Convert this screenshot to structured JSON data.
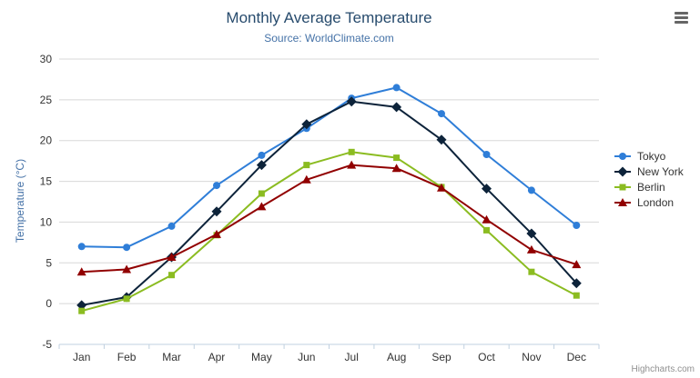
{
  "chart_data": {
    "type": "line",
    "title": "Monthly Average Temperature",
    "subtitle": "Source: WorldClimate.com",
    "xlabel": "",
    "ylabel": "Temperature (°C)",
    "ylim": [
      -5,
      30
    ],
    "yticks": [
      -5,
      0,
      5,
      10,
      15,
      20,
      25,
      30
    ],
    "grid": true,
    "legend_position": "right",
    "categories": [
      "Jan",
      "Feb",
      "Mar",
      "Apr",
      "May",
      "Jun",
      "Jul",
      "Aug",
      "Sep",
      "Oct",
      "Nov",
      "Dec"
    ],
    "series": [
      {
        "name": "Tokyo",
        "color": "#2f7ed8",
        "marker": "circle",
        "values": [
          7.0,
          6.9,
          9.5,
          14.5,
          18.2,
          21.5,
          25.2,
          26.5,
          23.3,
          18.3,
          13.9,
          9.6
        ]
      },
      {
        "name": "New York",
        "color": "#0d233a",
        "marker": "diamond",
        "values": [
          -0.2,
          0.8,
          5.7,
          11.3,
          17.0,
          22.0,
          24.8,
          24.1,
          20.1,
          14.1,
          8.6,
          2.5
        ]
      },
      {
        "name": "Berlin",
        "color": "#8bbc21",
        "marker": "square",
        "values": [
          -0.9,
          0.6,
          3.5,
          8.4,
          13.5,
          17.0,
          18.6,
          17.9,
          14.3,
          9.0,
          3.9,
          1.0
        ]
      },
      {
        "name": "London",
        "color": "#910000",
        "marker": "triangle",
        "values": [
          3.9,
          4.2,
          5.7,
          8.5,
          11.9,
          15.2,
          17.0,
          16.6,
          14.2,
          10.3,
          6.6,
          4.8
        ]
      }
    ]
  },
  "style_colors": {
    "grid": "#d8d8d8",
    "axis_line": "#c0d0e0",
    "title": "#274b6d",
    "subtitle": "#4572a7",
    "y_axis_title": "#4572a7",
    "axis_label": "#333333",
    "legend_text": "#333333",
    "credits": "#909090",
    "menu_icon": "#666666"
  },
  "credits": {
    "text": "Highcharts.com"
  }
}
